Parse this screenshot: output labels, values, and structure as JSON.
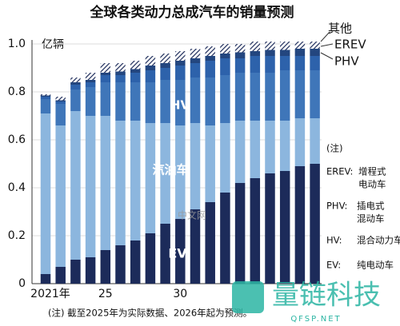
{
  "chart_data": {
    "type": "stacked-bar",
    "title": "全球各类动力总成汽车的销量预测",
    "y_unit": "亿辆",
    "categories": [
      "2021年",
      null,
      null,
      null,
      "25",
      null,
      null,
      null,
      null,
      "30",
      null,
      null,
      null,
      null,
      null,
      null,
      null,
      null,
      null
    ],
    "series": [
      {
        "name": "EV",
        "color": "#1c2b5a",
        "values": [
          0.04,
          0.07,
          0.1,
          0.11,
          0.14,
          0.16,
          0.18,
          0.21,
          0.25,
          0.27,
          0.31,
          0.34,
          0.38,
          0.42,
          0.44,
          0.46,
          0.47,
          0.49,
          0.5
        ]
      },
      {
        "name": "汽油车",
        "color": "#8cb6de",
        "values": [
          0.67,
          0.59,
          0.62,
          0.59,
          0.56,
          0.52,
          0.5,
          0.46,
          0.42,
          0.39,
          0.36,
          0.32,
          0.29,
          0.26,
          0.24,
          0.22,
          0.21,
          0.2,
          0.19
        ]
      },
      {
        "name": "HV",
        "color": "#3f76b9",
        "values": [
          0.06,
          0.09,
          0.09,
          0.12,
          0.14,
          0.16,
          0.16,
          0.17,
          0.18,
          0.19,
          0.19,
          0.2,
          0.2,
          0.2,
          0.2,
          0.2,
          0.21,
          0.2,
          0.2
        ]
      },
      {
        "name": "PHV",
        "color": "#2d62ab",
        "values": [
          0.01,
          0.01,
          0.02,
          0.02,
          0.03,
          0.03,
          0.04,
          0.05,
          0.05,
          0.06,
          0.06,
          0.07,
          0.07,
          0.06,
          0.07,
          0.07,
          0.06,
          0.06,
          0.06
        ]
      },
      {
        "name": "EREV",
        "color": "#23467f",
        "values": [
          0.005,
          0.005,
          0.01,
          0.01,
          0.01,
          0.015,
          0.015,
          0.02,
          0.02,
          0.02,
          0.02,
          0.02,
          0.02,
          0.025,
          0.02,
          0.025,
          0.025,
          0.03,
          0.03
        ]
      },
      {
        "name": "其他",
        "color": "#1c2b5a",
        "hatch": true,
        "values": [
          0.005,
          0.015,
          0.02,
          0.03,
          0.04,
          0.035,
          0.035,
          0.04,
          0.04,
          0.04,
          0.04,
          0.04,
          0.04,
          0.035,
          0.04,
          0.035,
          0.035,
          0.03,
          0.03
        ]
      }
    ],
    "ylim": [
      0,
      1
    ],
    "yticks": [
      0,
      0.2,
      0.4,
      0.6,
      0.8,
      {
        "value": 1,
        "label": "1.0"
      }
    ],
    "notes_title": "(注)",
    "notes": [
      {
        "abbr": "EREV:",
        "lines": [
          "增程式",
          "电动车"
        ]
      },
      {
        "abbr": "PHV:",
        "lines": [
          "插电式",
          "混动车"
        ]
      },
      {
        "abbr": "HV:",
        "lines": [
          "混合动力车"
        ]
      },
      {
        "abbr": "EV:",
        "lines": [
          "纯电动车"
        ]
      }
    ],
    "footnote": "(注) 截至2025年为实际数据、2026年起为预测。",
    "watermarks": [
      "中文网",
      "量链科技",
      "QFSP.NET"
    ]
  }
}
